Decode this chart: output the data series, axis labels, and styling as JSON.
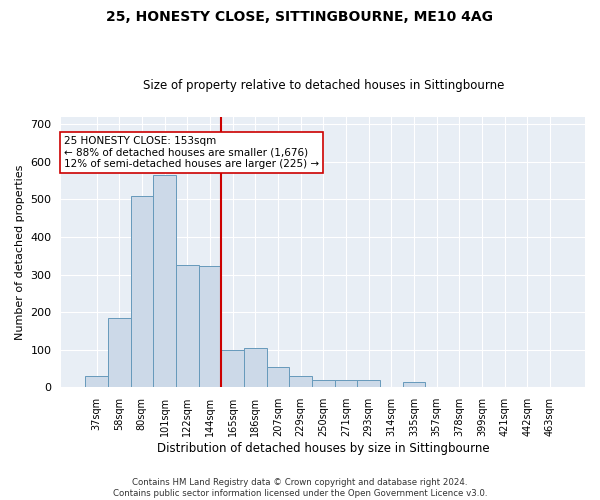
{
  "title": "25, HONESTY CLOSE, SITTINGBOURNE, ME10 4AG",
  "subtitle": "Size of property relative to detached houses in Sittingbourne",
  "xlabel": "Distribution of detached houses by size in Sittingbourne",
  "ylabel": "Number of detached properties",
  "categories": [
    "37sqm",
    "58sqm",
    "80sqm",
    "101sqm",
    "122sqm",
    "144sqm",
    "165sqm",
    "186sqm",
    "207sqm",
    "229sqm",
    "250sqm",
    "271sqm",
    "293sqm",
    "314sqm",
    "335sqm",
    "357sqm",
    "378sqm",
    "399sqm",
    "421sqm",
    "442sqm",
    "463sqm"
  ],
  "values": [
    30,
    185,
    510,
    565,
    325,
    322,
    100,
    105,
    55,
    30,
    20,
    20,
    20,
    0,
    15,
    0,
    0,
    0,
    0,
    0,
    0
  ],
  "bar_color": "#ccd9e8",
  "bar_edge_color": "#6699bb",
  "ylim": [
    0,
    720
  ],
  "yticks": [
    0,
    100,
    200,
    300,
    400,
    500,
    600,
    700
  ],
  "vline_x_index": 5.5,
  "vline_color": "#cc0000",
  "annotation_text": "25 HONESTY CLOSE: 153sqm\n← 88% of detached houses are smaller (1,676)\n12% of semi-detached houses are larger (225) →",
  "annotation_box_color": "#ffffff",
  "annotation_box_edge_color": "#cc0000",
  "footer": "Contains HM Land Registry data © Crown copyright and database right 2024.\nContains public sector information licensed under the Open Government Licence v3.0.",
  "bg_color": "#ffffff",
  "plot_bg_color": "#e8eef5"
}
